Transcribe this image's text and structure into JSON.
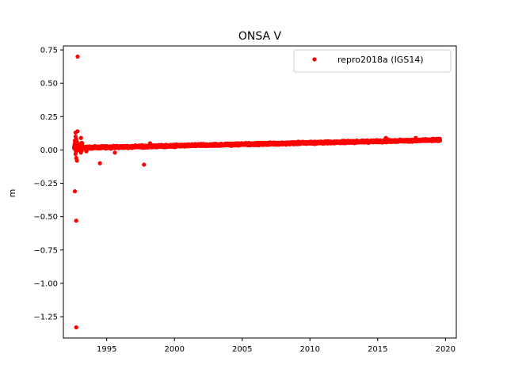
{
  "chart_data": {
    "type": "scatter",
    "title": "ONSA V",
    "xlabel": "",
    "ylabel": "m",
    "xlim": [
      1991.8,
      2020.8
    ],
    "ylim": [
      -1.41,
      0.78
    ],
    "x_ticks": [
      1995,
      2000,
      2005,
      2010,
      2015,
      2020
    ],
    "x_tick_labels": [
      "1995",
      "2000",
      "2005",
      "2010",
      "2015",
      "2020"
    ],
    "y_ticks": [
      0.75,
      0.5,
      0.25,
      0.0,
      -0.25,
      -0.5,
      -0.75,
      -1.0,
      -1.25
    ],
    "y_tick_labels": [
      "0.75",
      "0.50",
      "0.25",
      "0.00",
      "−0.25",
      "−0.50",
      "−0.75",
      "−1.00",
      "−1.25"
    ],
    "grid": false,
    "legend_position": "top-right",
    "series": [
      {
        "name": "repro2018a (IGS14)",
        "color": "#ff0000",
        "marker": "circle",
        "trend": {
          "x_start": 1992.6,
          "x_end": 2019.6,
          "y_start": 0.015,
          "y_end": 0.075,
          "spread": 0.012
        },
        "outliers": [
          {
            "x": 1992.85,
            "y": 0.7
          },
          {
            "x": 1992.75,
            "y": -1.33
          },
          {
            "x": 1992.75,
            "y": -0.53
          },
          {
            "x": 1992.65,
            "y": -0.31
          },
          {
            "x": 1992.7,
            "y": 0.13
          },
          {
            "x": 1992.85,
            "y": 0.14
          },
          {
            "x": 1992.7,
            "y": 0.1
          },
          {
            "x": 1992.75,
            "y": 0.08
          },
          {
            "x": 1992.65,
            "y": 0.07
          },
          {
            "x": 1992.8,
            "y": 0.06
          },
          {
            "x": 1992.7,
            "y": -0.03
          },
          {
            "x": 1992.75,
            "y": -0.06
          },
          {
            "x": 1992.8,
            "y": -0.08
          },
          {
            "x": 1993.1,
            "y": 0.09
          },
          {
            "x": 1993.2,
            "y": 0.05
          },
          {
            "x": 1993.1,
            "y": -0.02
          },
          {
            "x": 1993.5,
            "y": -0.01
          },
          {
            "x": 1994.5,
            "y": -0.1
          },
          {
            "x": 1995.6,
            "y": -0.02
          },
          {
            "x": 1997.75,
            "y": -0.11
          },
          {
            "x": 1998.2,
            "y": 0.05
          },
          {
            "x": 2015.6,
            "y": 0.09
          },
          {
            "x": 2017.8,
            "y": 0.09
          }
        ]
      }
    ]
  }
}
